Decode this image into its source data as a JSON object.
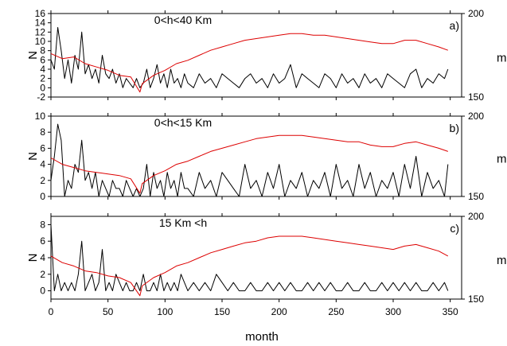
{
  "chart_data": [
    {
      "type": "line",
      "panel_label": "a)",
      "annotation": "0<h<40 Km",
      "ylabel": "N",
      "y2label": "m",
      "ylim": [
        -2,
        16
      ],
      "yticks": [
        -2,
        0,
        2,
        4,
        6,
        8,
        10,
        12,
        14,
        16
      ],
      "y2lim": [
        150,
        200
      ],
      "y2ticks": [
        150,
        200
      ],
      "xlim": [
        0,
        360
      ],
      "series": [
        {
          "color": "#000000",
          "axis": "left",
          "x": [
            0,
            3,
            6,
            9,
            12,
            15,
            18,
            21,
            24,
            27,
            30,
            33,
            36,
            39,
            42,
            45,
            48,
            51,
            54,
            57,
            60,
            63,
            66,
            69,
            72,
            75,
            78,
            81,
            84,
            87,
            90,
            93,
            96,
            99,
            102,
            105,
            108,
            111,
            114,
            117,
            120,
            125,
            130,
            135,
            140,
            145,
            150,
            155,
            160,
            165,
            170,
            175,
            180,
            185,
            190,
            195,
            200,
            205,
            210,
            215,
            220,
            225,
            230,
            235,
            240,
            245,
            250,
            255,
            260,
            265,
            270,
            275,
            280,
            285,
            290,
            295,
            300,
            305,
            310,
            315,
            320,
            325,
            330,
            335,
            340,
            345,
            348
          ],
          "values": [
            6,
            4,
            13,
            8,
            2,
            6,
            1,
            7,
            4,
            12,
            3,
            5,
            2,
            4,
            1,
            7,
            3,
            2,
            4,
            1,
            3,
            0,
            2,
            1,
            0,
            2,
            0,
            1,
            4,
            0,
            2,
            5,
            1,
            3,
            0,
            4,
            1,
            2,
            0,
            3,
            1,
            0,
            3,
            1,
            2,
            0,
            3,
            2,
            1,
            0,
            2,
            3,
            1,
            2,
            0,
            3,
            1,
            2,
            5,
            0,
            3,
            2,
            1,
            0,
            3,
            2,
            0,
            3,
            1,
            2,
            0,
            3,
            1,
            2,
            0,
            3,
            2,
            1,
            0,
            3,
            4,
            0,
            2,
            1,
            3,
            2,
            4
          ]
        },
        {
          "color": "#dd0000",
          "axis": "right",
          "x": [
            0,
            10,
            20,
            30,
            40,
            50,
            60,
            70,
            78,
            80,
            90,
            100,
            110,
            120,
            130,
            140,
            150,
            160,
            170,
            180,
            190,
            200,
            210,
            220,
            230,
            240,
            250,
            260,
            270,
            280,
            290,
            300,
            310,
            320,
            330,
            340,
            348
          ],
          "values": [
            176,
            173,
            174,
            170,
            168,
            166,
            163,
            162,
            153,
            158,
            163,
            166,
            170,
            172,
            175,
            178,
            180,
            182,
            184,
            185,
            186,
            187,
            188,
            188,
            187,
            187,
            186,
            185,
            184,
            183,
            182,
            182,
            184,
            184,
            182,
            180,
            178
          ]
        }
      ]
    },
    {
      "type": "line",
      "panel_label": "b)",
      "annotation": "0<h<15 Km",
      "ylabel": "N",
      "y2label": "m",
      "ylim": [
        0,
        10
      ],
      "yticks": [
        0,
        2,
        4,
        6,
        8,
        10
      ],
      "y2lim": [
        150,
        200
      ],
      "y2ticks": [
        150,
        200
      ],
      "xlim": [
        0,
        360
      ],
      "series": [
        {
          "color": "#000000",
          "axis": "left",
          "x": [
            0,
            3,
            6,
            9,
            12,
            15,
            18,
            21,
            24,
            27,
            30,
            33,
            36,
            39,
            42,
            45,
            48,
            51,
            54,
            57,
            60,
            63,
            66,
            69,
            72,
            75,
            78,
            81,
            84,
            87,
            90,
            93,
            96,
            99,
            102,
            105,
            108,
            111,
            114,
            117,
            120,
            125,
            130,
            135,
            140,
            145,
            150,
            155,
            160,
            165,
            170,
            175,
            180,
            185,
            190,
            195,
            200,
            205,
            210,
            215,
            220,
            225,
            230,
            235,
            240,
            245,
            250,
            255,
            260,
            265,
            270,
            275,
            280,
            285,
            290,
            295,
            300,
            305,
            310,
            315,
            320,
            325,
            330,
            335,
            340,
            345,
            348
          ],
          "values": [
            2,
            5,
            9,
            7,
            0,
            2,
            1,
            4,
            3,
            7,
            2,
            3,
            1,
            3,
            0,
            2,
            1,
            0,
            2,
            1,
            1,
            0,
            2,
            1,
            0,
            1,
            0,
            1,
            4,
            0,
            3,
            1,
            2,
            0,
            3,
            1,
            2,
            0,
            3,
            1,
            1,
            0,
            3,
            1,
            2,
            0,
            3,
            2,
            1,
            0,
            4,
            1,
            2,
            0,
            3,
            1,
            4,
            0,
            2,
            1,
            3,
            0,
            2,
            1,
            3,
            0,
            4,
            1,
            2,
            0,
            4,
            1,
            3,
            0,
            2,
            1,
            3,
            0,
            4,
            1,
            5,
            0,
            3,
            1,
            2,
            0,
            4
          ]
        },
        {
          "color": "#dd0000",
          "axis": "right",
          "x": [
            0,
            10,
            20,
            30,
            40,
            50,
            60,
            70,
            78,
            80,
            90,
            100,
            110,
            120,
            130,
            140,
            150,
            160,
            170,
            180,
            190,
            200,
            210,
            220,
            230,
            240,
            250,
            260,
            270,
            280,
            290,
            300,
            310,
            320,
            330,
            340,
            348
          ],
          "values": [
            174,
            170,
            168,
            166,
            165,
            164,
            163,
            161,
            152,
            158,
            163,
            166,
            170,
            172,
            175,
            178,
            180,
            182,
            184,
            186,
            187,
            188,
            188,
            188,
            187,
            186,
            185,
            184,
            184,
            182,
            181,
            181,
            183,
            184,
            182,
            180,
            178
          ]
        }
      ]
    },
    {
      "type": "line",
      "panel_label": "c)",
      "annotation": "15 Km <h",
      "ylabel": "N",
      "y2label": "m",
      "ylim": [
        -1,
        9
      ],
      "yticks": [
        0,
        2,
        4,
        6,
        8
      ],
      "y2lim": [
        150,
        200
      ],
      "y2ticks": [
        150,
        200
      ],
      "xlim": [
        0,
        360
      ],
      "series": [
        {
          "color": "#000000",
          "axis": "left",
          "x": [
            0,
            3,
            6,
            9,
            12,
            15,
            18,
            21,
            24,
            27,
            30,
            33,
            36,
            39,
            42,
            45,
            48,
            51,
            54,
            57,
            60,
            63,
            66,
            69,
            72,
            75,
            78,
            81,
            84,
            87,
            90,
            93,
            96,
            99,
            102,
            105,
            108,
            111,
            114,
            117,
            120,
            125,
            130,
            135,
            140,
            145,
            150,
            155,
            160,
            165,
            170,
            175,
            180,
            185,
            190,
            195,
            200,
            205,
            210,
            215,
            220,
            225,
            230,
            235,
            240,
            245,
            250,
            255,
            260,
            265,
            270,
            275,
            280,
            285,
            290,
            295,
            300,
            305,
            310,
            315,
            320,
            325,
            330,
            335,
            340,
            345,
            348
          ],
          "values": [
            8,
            0,
            2,
            0,
            1,
            0,
            1,
            0,
            2,
            6,
            0,
            1,
            2,
            0,
            1,
            5,
            0,
            1,
            0,
            2,
            1,
            0,
            1,
            0,
            0,
            1,
            0,
            2,
            0,
            0,
            1,
            0,
            2,
            0,
            1,
            0,
            1,
            0,
            2,
            1,
            0,
            1,
            0,
            1,
            0,
            2,
            1,
            0,
            1,
            0,
            0,
            1,
            0,
            0,
            1,
            0,
            1,
            0,
            1,
            0,
            0,
            1,
            0,
            1,
            0,
            1,
            0,
            0,
            1,
            0,
            0,
            1,
            0,
            0,
            1,
            0,
            1,
            0,
            1,
            0,
            1,
            0,
            0,
            1,
            0,
            1,
            0
          ]
        },
        {
          "color": "#dd0000",
          "axis": "right",
          "x": [
            0,
            10,
            20,
            30,
            40,
            50,
            60,
            70,
            78,
            80,
            90,
            100,
            110,
            120,
            130,
            140,
            150,
            160,
            170,
            180,
            190,
            200,
            210,
            220,
            230,
            240,
            250,
            260,
            270,
            280,
            290,
            300,
            310,
            320,
            330,
            340,
            348
          ],
          "values": [
            176,
            172,
            170,
            167,
            166,
            164,
            163,
            160,
            152,
            158,
            163,
            166,
            170,
            172,
            175,
            178,
            180,
            182,
            184,
            185,
            187,
            188,
            188,
            188,
            187,
            186,
            185,
            184,
            183,
            182,
            181,
            180,
            182,
            183,
            181,
            179,
            176
          ]
        }
      ]
    }
  ],
  "xaxis": {
    "label": "month",
    "ticks": [
      0,
      50,
      100,
      150,
      200,
      250,
      300,
      350
    ]
  }
}
